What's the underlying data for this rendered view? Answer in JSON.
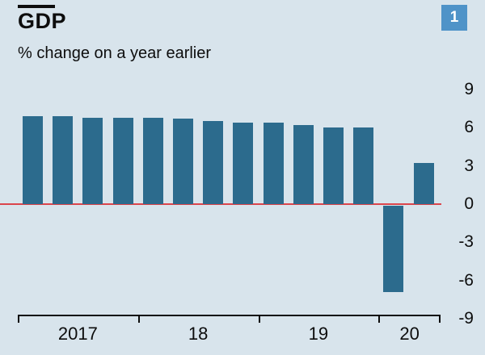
{
  "header": {
    "title": "GDP",
    "subtitle": "% change on a year earlier",
    "figure_number": "1"
  },
  "colors": {
    "background": "#d8e4ec",
    "bar": "#2c6b8d",
    "zero_line": "#db444b",
    "badge": "#4f93c8",
    "axis": "#0d0d0d",
    "text": "#0d0d0d"
  },
  "chart_data": {
    "type": "bar",
    "title": "GDP",
    "subtitle": "% change on a year earlier",
    "x": [
      "2017 Q1",
      "2017 Q2",
      "2017 Q3",
      "2017 Q4",
      "2018 Q1",
      "2018 Q2",
      "2018 Q3",
      "2018 Q4",
      "2019 Q1",
      "2019 Q2",
      "2019 Q3",
      "2019 Q4",
      "2020 Q1",
      "2020 Q2"
    ],
    "values": [
      6.9,
      6.9,
      6.8,
      6.8,
      6.8,
      6.7,
      6.5,
      6.4,
      6.4,
      6.2,
      6.0,
      6.0,
      -6.8,
      3.2
    ],
    "years": [
      {
        "label": "2017",
        "quarters": 4
      },
      {
        "label": "18",
        "quarters": 4
      },
      {
        "label": "19",
        "quarters": 4
      },
      {
        "label": "20",
        "quarters": 2
      }
    ],
    "yticks": [
      9,
      6,
      3,
      0,
      -3,
      -6,
      -9
    ],
    "ylim": [
      -9,
      9
    ],
    "xlabel": "",
    "ylabel": "",
    "grid": false,
    "legend": "none",
    "tick_label_side": "right",
    "zero_line": true
  }
}
